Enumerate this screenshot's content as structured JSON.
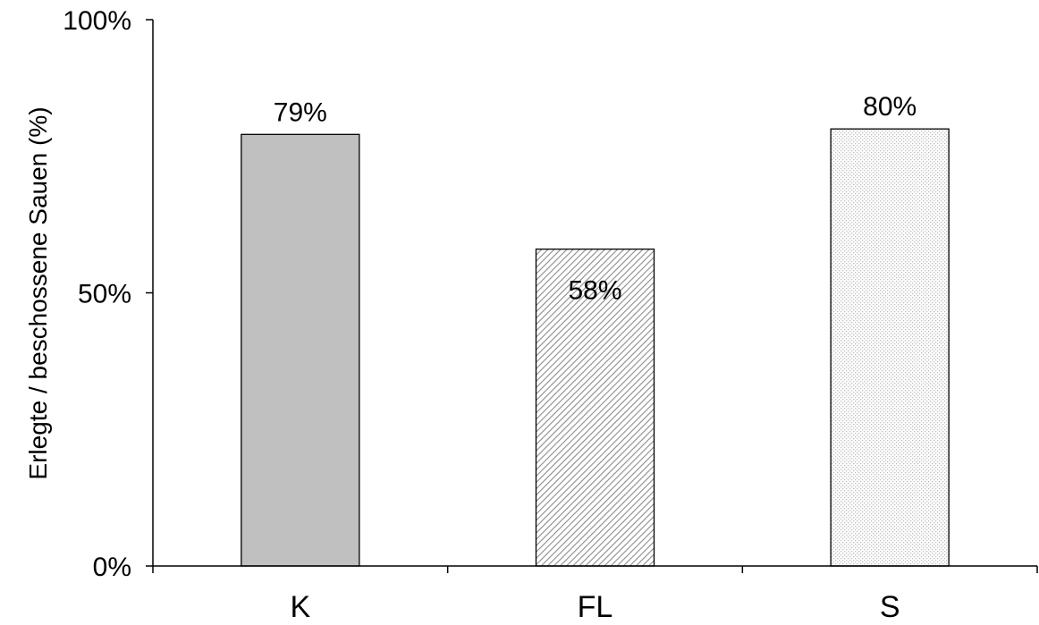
{
  "chart_data": {
    "type": "bar",
    "title": "",
    "xlabel": "",
    "ylabel": "Erlegte / beschossene Sauen (%)",
    "categories": [
      "K",
      "FL",
      "S"
    ],
    "values": [
      79,
      58,
      80
    ],
    "value_labels": [
      "79%",
      "58%",
      "80%"
    ],
    "ylim": [
      0,
      100
    ],
    "yticks": [
      0,
      50,
      100
    ],
    "ytick_labels": [
      "0%",
      "50%",
      "100%"
    ],
    "grid": false,
    "legend": "none",
    "bar_fills": [
      "solid-gray",
      "diagonal-hatch",
      "fine-dots"
    ],
    "colors": {
      "solid": "#c0c0c0",
      "hatch": "#8c8c8c",
      "dots": "#bdbdbd",
      "line": "#000000"
    }
  }
}
